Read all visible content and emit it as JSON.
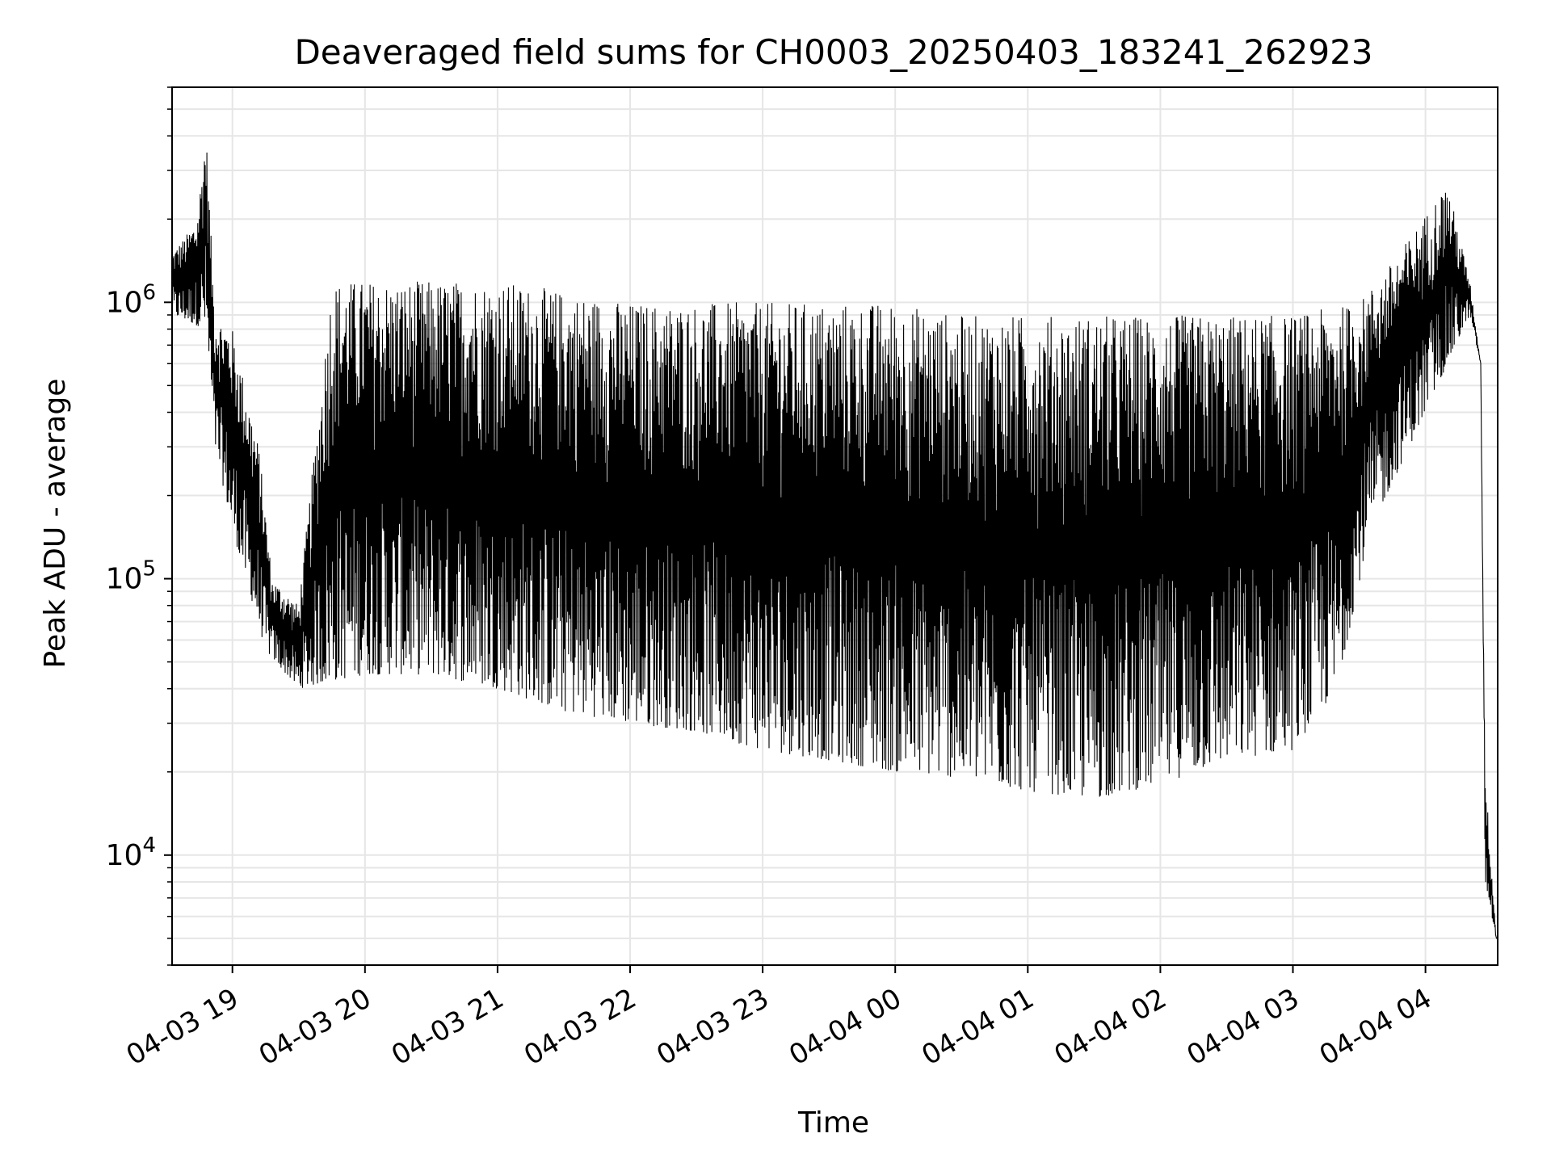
{
  "chart_data": {
    "type": "line",
    "title": "Deaveraged field sums for CH0003_20250403_183241_262923",
    "xlabel": "Time",
    "ylabel": "Peak ADU - average",
    "yscale": "log",
    "ylim": [
      4000,
      6000000
    ],
    "xlim": [
      "2025-04-03 18:32:41",
      "2025-04-04 04:32:41"
    ],
    "grid": true,
    "line_color": "#000000",
    "grid_color": "#e6e6e6",
    "x_ticks": [
      "04-03 19",
      "04-03 20",
      "04-03 21",
      "04-03 22",
      "04-03 23",
      "04-04 00",
      "04-04 01",
      "04-04 02",
      "04-04 03",
      "04-04 04"
    ],
    "x_tick_values": [
      "2025-04-03 19:00",
      "2025-04-03 20:00",
      "2025-04-03 21:00",
      "2025-04-03 22:00",
      "2025-04-03 23:00",
      "2025-04-04 00:00",
      "2025-04-04 01:00",
      "2025-04-04 02:00",
      "2025-04-04 03:00",
      "2025-04-04 04:00"
    ],
    "y_ticks": [
      {
        "value": 10000,
        "base": "10",
        "exp": "4"
      },
      {
        "value": 100000,
        "base": "10",
        "exp": "5"
      },
      {
        "value": 1000000,
        "base": "10",
        "exp": "6"
      }
    ],
    "series": [
      {
        "envelope_top": [
          [
            "2025-04-03 18:32",
            1500000
          ],
          [
            "2025-04-03 18:38",
            1700000
          ],
          [
            "2025-04-03 18:44",
            2000000
          ],
          [
            "2025-04-03 18:48",
            4300000
          ],
          [
            "2025-04-03 18:52",
            900000
          ],
          [
            "2025-04-03 19:00",
            800000
          ],
          [
            "2025-04-03 19:12",
            300000
          ],
          [
            "2025-04-03 19:18",
            100000
          ],
          [
            "2025-04-03 19:30",
            80000
          ],
          [
            "2025-04-03 19:45",
            1200000
          ],
          [
            "2025-04-03 20:00",
            1200000
          ],
          [
            "2025-04-03 20:30",
            1200000
          ],
          [
            "2025-04-03 21:00",
            1200000
          ],
          [
            "2025-04-03 21:30",
            1100000
          ],
          [
            "2025-04-03 22:00",
            1000000
          ],
          [
            "2025-04-03 22:30",
            1000000
          ],
          [
            "2025-04-03 23:00",
            1000000
          ],
          [
            "2025-04-03 23:30",
            1000000
          ],
          [
            "2025-04-04 00:00",
            1000000
          ],
          [
            "2025-04-04 00:30",
            900000
          ],
          [
            "2025-04-04 01:00",
            900000
          ],
          [
            "2025-04-04 01:30",
            900000
          ],
          [
            "2025-04-04 02:00",
            900000
          ],
          [
            "2025-04-04 02:30",
            900000
          ],
          [
            "2025-04-04 03:00",
            900000
          ],
          [
            "2025-04-04 03:30",
            1000000
          ],
          [
            "2025-04-04 03:45",
            1400000
          ],
          [
            "2025-04-04 04:10",
            2700000
          ],
          [
            "2025-04-04 04:20",
            1200000
          ],
          [
            "2025-04-04 04:25",
            600000
          ],
          [
            "2025-04-04 04:27",
            20000
          ],
          [
            "2025-04-04 04:32",
            5000
          ]
        ],
        "envelope_bottom": [
          [
            "2025-04-03 18:32",
            900000
          ],
          [
            "2025-04-03 18:48",
            800000
          ],
          [
            "2025-04-03 18:52",
            300000
          ],
          [
            "2025-04-03 19:00",
            150000
          ],
          [
            "2025-04-03 19:15",
            55000
          ],
          [
            "2025-04-03 19:30",
            40000
          ],
          [
            "2025-04-03 20:00",
            45000
          ],
          [
            "2025-04-03 20:30",
            45000
          ],
          [
            "2025-04-03 21:00",
            40000
          ],
          [
            "2025-04-03 21:30",
            33000
          ],
          [
            "2025-04-03 22:00",
            30000
          ],
          [
            "2025-04-03 22:30",
            28000
          ],
          [
            "2025-04-03 23:00",
            24000
          ],
          [
            "2025-04-03 23:30",
            22000
          ],
          [
            "2025-04-04 00:00",
            20000
          ],
          [
            "2025-04-04 00:30",
            19000
          ],
          [
            "2025-04-04 01:00",
            17000
          ],
          [
            "2025-04-04 01:30",
            16000
          ],
          [
            "2025-04-04 02:00",
            18000
          ],
          [
            "2025-04-04 02:30",
            22000
          ],
          [
            "2025-04-04 03:00",
            24000
          ],
          [
            "2025-04-04 03:20",
            40000
          ],
          [
            "2025-04-04 03:35",
            150000
          ],
          [
            "2025-04-04 04:00",
            400000
          ],
          [
            "2025-04-04 04:20",
            900000
          ],
          [
            "2025-04-04 04:25",
            600000
          ],
          [
            "2025-04-04 04:27",
            8000
          ],
          [
            "2025-04-04 04:32",
            5000
          ]
        ]
      }
    ]
  }
}
